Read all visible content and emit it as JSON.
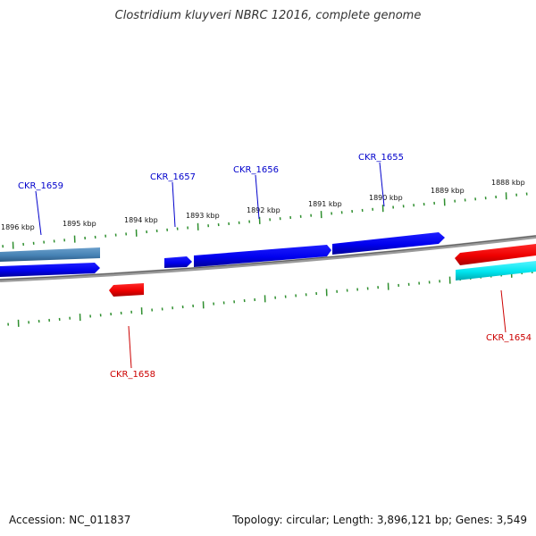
{
  "title": "Clostridium kluyveri NBRC 12016, complete genome",
  "footer": {
    "accession": "Accession: NC_011837",
    "summary": "Topology: circular; Length: 3,896,121 bp; Genes: 3,549"
  },
  "colors": {
    "forward_gene": "#0000ee",
    "reverse_gene": "#ee0000",
    "rna_gene": "#00e5ee",
    "selected_gene": "#4682b4",
    "backbone": "#7a7a7a",
    "ticks": "#2f8f2f",
    "forward_label": "#0000cc",
    "reverse_label": "#cc0000"
  },
  "ruler": {
    "labels": [
      "1896 kbp",
      "1895 kbp",
      "1894 kbp",
      "1893 kbp",
      "1892 kbp",
      "1891 kbp",
      "1890 kbp",
      "1889 kbp",
      "1888 kbp"
    ]
  },
  "genes": [
    {
      "name": "CKR_1659",
      "strand": "forward"
    },
    {
      "name": "CKR_1657",
      "strand": "forward"
    },
    {
      "name": "CKR_1656",
      "strand": "forward"
    },
    {
      "name": "CKR_1655",
      "strand": "forward"
    },
    {
      "name": "CKR_1658",
      "strand": "reverse"
    },
    {
      "name": "CKR_1654",
      "strand": "reverse"
    }
  ]
}
